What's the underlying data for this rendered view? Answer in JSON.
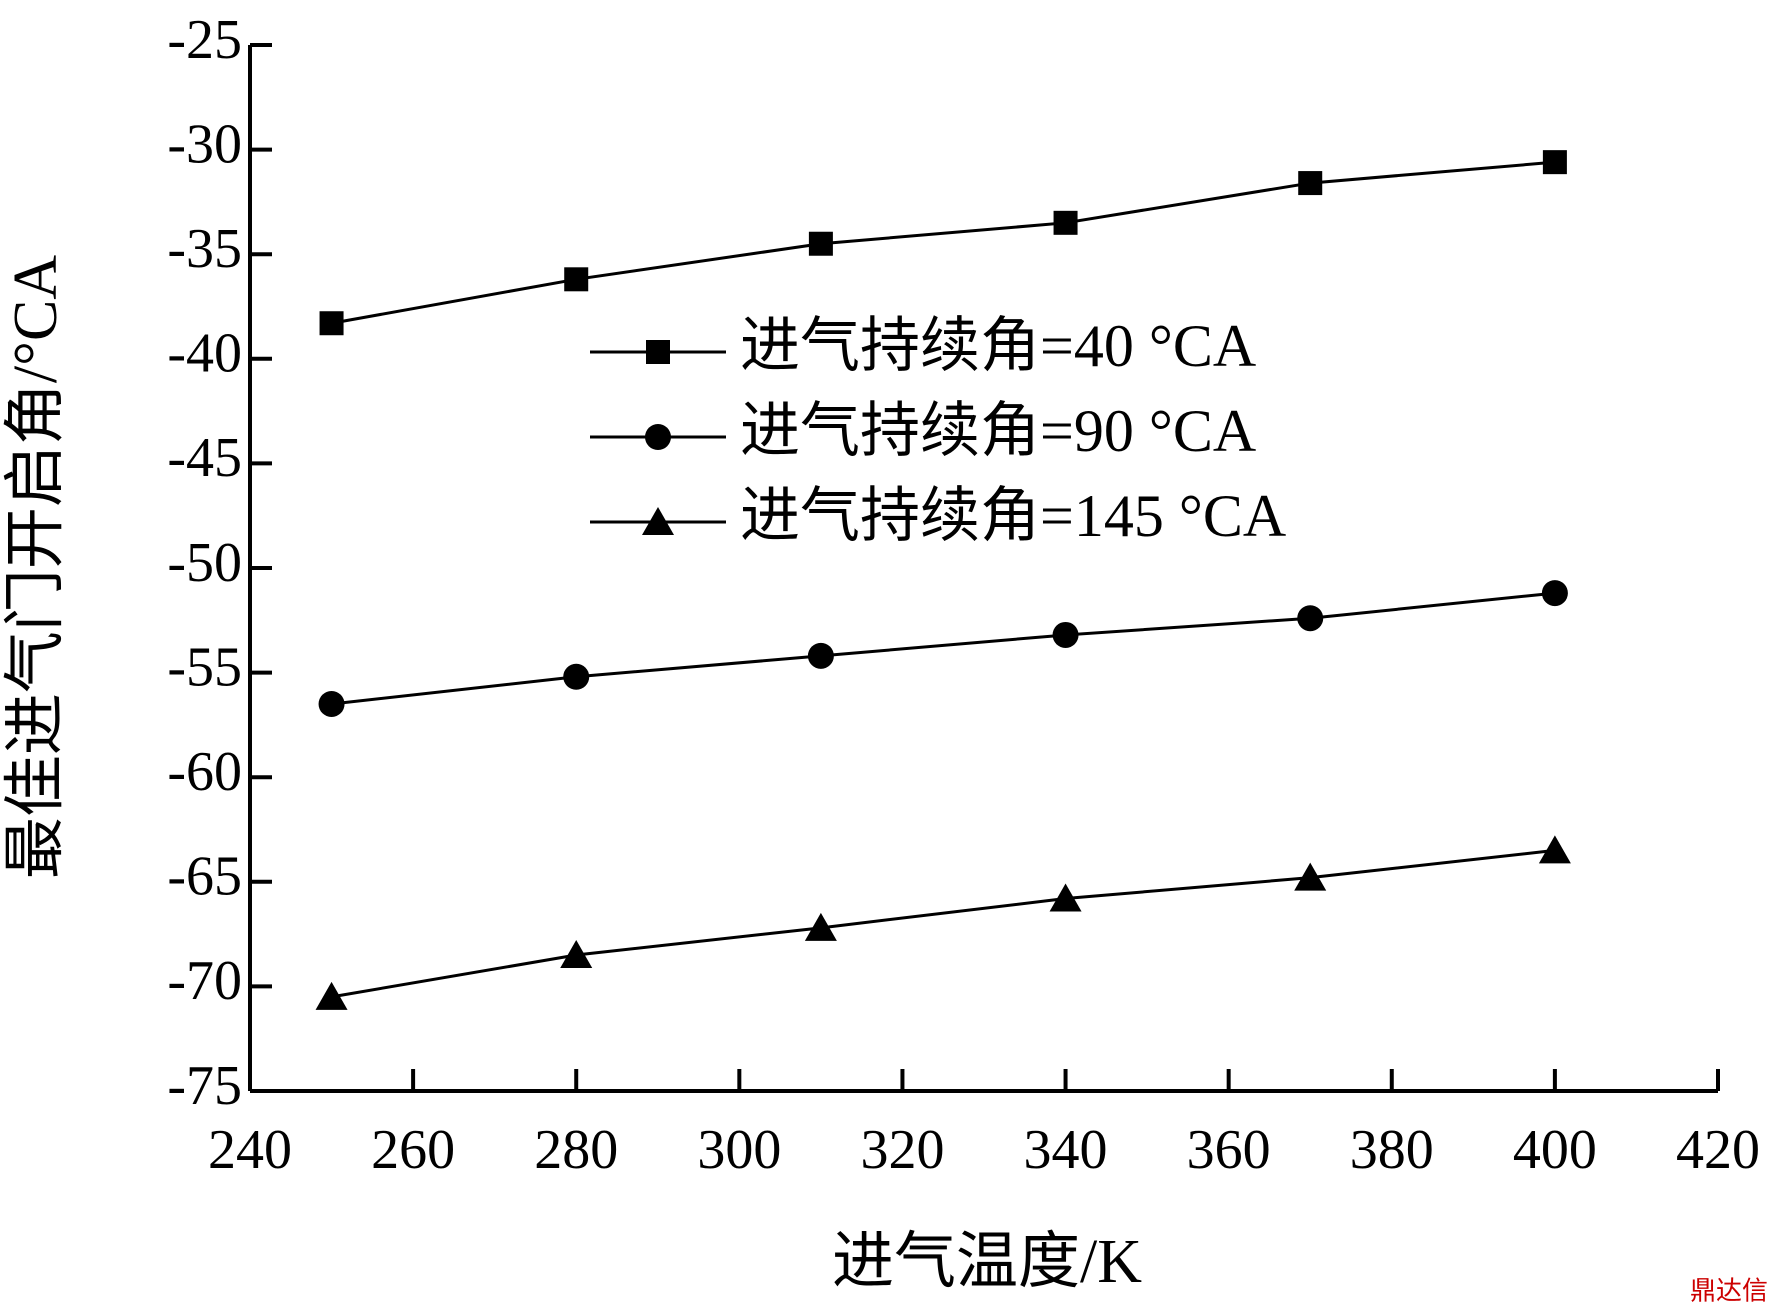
{
  "chart_data": {
    "type": "line",
    "x_label": "进气温度/K",
    "y_label": "最佳进气门开启角/°CA",
    "x": [
      250,
      280,
      310,
      340,
      370,
      400
    ],
    "series": [
      {
        "name": "进气持续角=40 °CA",
        "color": "#000000",
        "marker": "square",
        "values": [
          -38.3,
          -36.2,
          -34.5,
          -33.5,
          -31.6,
          -30.6
        ]
      },
      {
        "name": "进气持续角=90 °CA",
        "color": "#000000",
        "marker": "circle",
        "values": [
          -56.5,
          -55.2,
          -54.2,
          -53.2,
          -52.4,
          -51.2
        ]
      },
      {
        "name": "进气持续角=145 °CA",
        "color": "#000000",
        "marker": "triangle",
        "values": [
          -70.5,
          -68.5,
          -67.2,
          -65.8,
          -64.8,
          -63.5
        ]
      }
    ],
    "xlim": [
      240,
      420
    ],
    "xticks": [
      240,
      260,
      280,
      300,
      320,
      340,
      360,
      380,
      400,
      420
    ],
    "ylim": [
      -75,
      -25
    ],
    "yticks": [
      -75,
      -70,
      -65,
      -60,
      -55,
      -50,
      -45,
      -40,
      -35,
      -30,
      -25
    ],
    "watermark": "鼎达信"
  }
}
